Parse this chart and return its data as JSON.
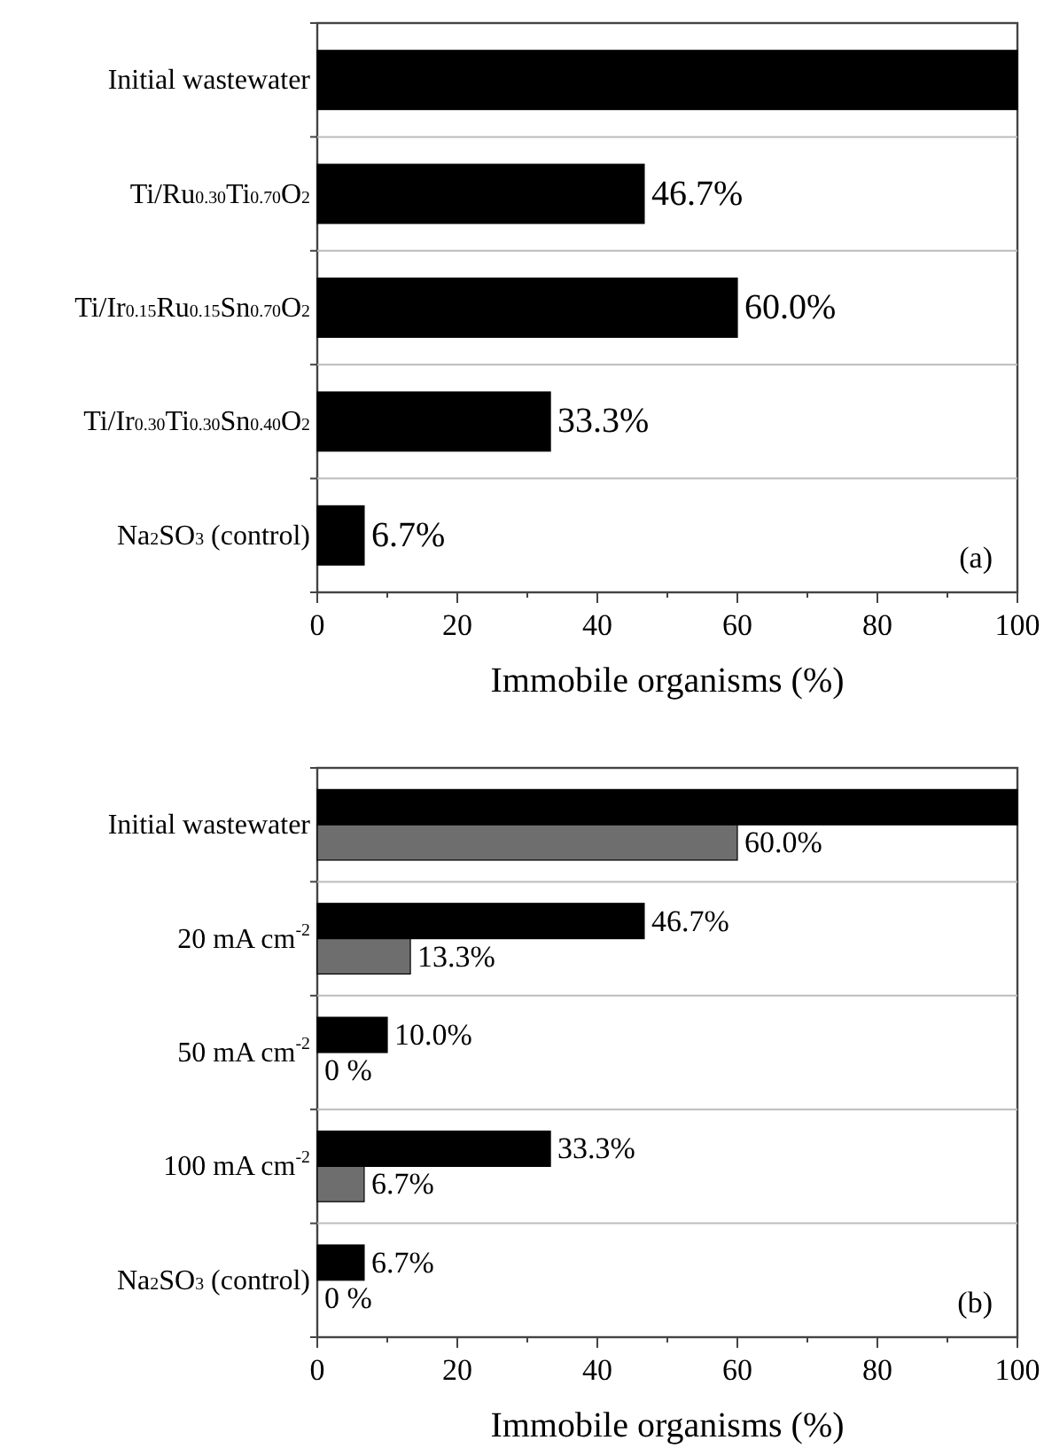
{
  "chart_data": [
    {
      "type": "bar",
      "orientation": "horizontal",
      "xlabel": "Immobile organisms (%)",
      "categories": [
        "Initial wastewater",
        "Ti/Ru$_{0.30}$Ti$_{0.70}$O$_{2}$",
        "Ti/Ir$_{0.15}$Ru$_{0.15}$Sn$_{0.70}$O$_{2}$",
        "Ti/Ir$_{0.30}$Ti$_{0.30}$Sn$_{0.40}$O$_{2}$",
        "Na$_{2}$SO$_{3}$ (control)"
      ],
      "values": [
        100,
        46.7,
        60.0,
        33.3,
        6.7
      ],
      "color": "#000000",
      "value_labels": [
        null,
        "46.7%",
        "60.0%",
        "33.3%",
        "6.7%"
      ],
      "xlim": [
        0,
        100
      ],
      "xticks": [
        0,
        {
          "value": 10,
          "label": null
        },
        20,
        {
          "value": 30,
          "label": null
        },
        40,
        {
          "value": 50,
          "label": null
        },
        60,
        {
          "value": 70,
          "label": null
        },
        80,
        {
          "value": 90,
          "label": null
        },
        100
      ],
      "grid": "y",
      "annotations": [
        "(a)"
      ]
    },
    {
      "type": "bar",
      "orientation": "horizontal",
      "xlabel": "Immobile organisms (%)",
      "categories": [
        "Initial wastewater",
        "20 mA cm$^{-2}$",
        "50 mA cm$^{-2}$",
        "100 mA cm$^{-2}$",
        "Na$_{2}$SO$_{3}$ (control)"
      ],
      "series": [
        {
          "color": "#000000",
          "values": [
            100,
            46.7,
            10.0,
            33.3,
            6.7
          ],
          "value_labels": [
            null,
            "46.7%",
            "10.0%",
            "33.3%",
            "6.7%"
          ]
        },
        {
          "color": "#6e6e6e",
          "values": [
            60.0,
            13.3,
            0,
            6.7,
            0
          ],
          "value_labels": [
            "60.0%",
            "13.3%",
            "0 %",
            "6.7%",
            "0 %"
          ]
        }
      ],
      "xlim": [
        0,
        100
      ],
      "xticks": [
        0,
        {
          "value": 10,
          "label": null
        },
        20,
        {
          "value": 30,
          "label": null
        },
        40,
        {
          "value": 50,
          "label": null
        },
        60,
        {
          "value": 70,
          "label": null
        },
        80,
        {
          "value": 90,
          "label": null
        },
        100
      ],
      "grid": "y",
      "annotations": [
        "(b)"
      ]
    }
  ]
}
